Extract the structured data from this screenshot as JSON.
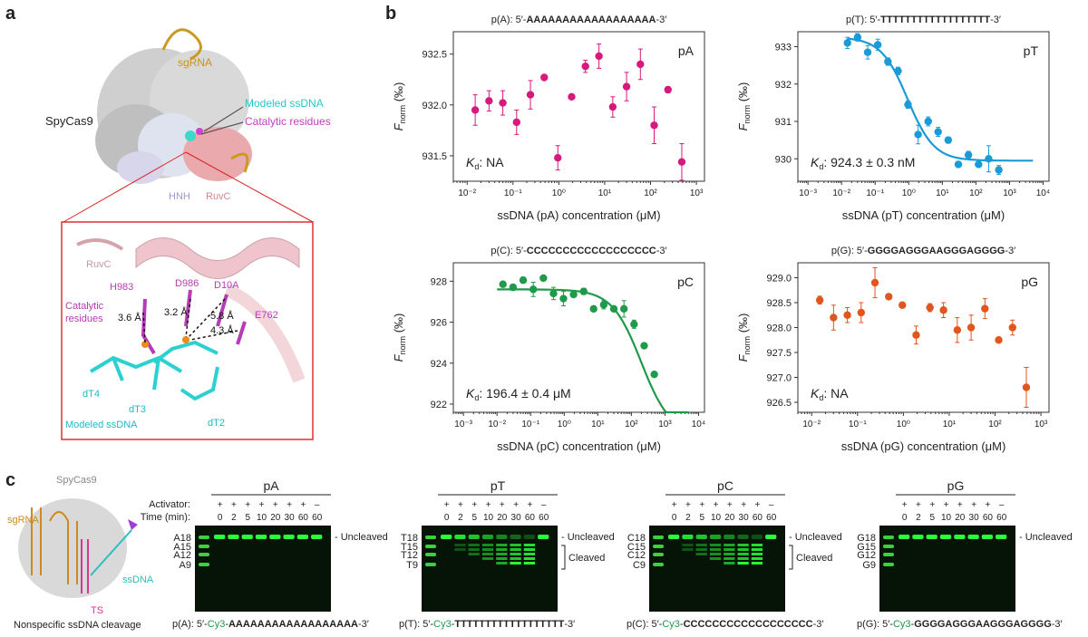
{
  "panels": {
    "a": "a",
    "b": "b",
    "c": "c"
  },
  "structure": {
    "protein": "SpyCas9",
    "sgRNA": "sgRNA",
    "modeled_ssdna": "Modeled ssDNA",
    "catalytic": "Catalytic residues",
    "domains": [
      "HNH",
      "RuvC"
    ],
    "zoom": {
      "ruvc": "RuvC",
      "residues": [
        "H983",
        "D986",
        "D10A",
        "E762"
      ],
      "catalytic_label": [
        "Catalytic",
        "residues"
      ],
      "distances": [
        "3.6 Å",
        "3.2 Å",
        "5.8 Å",
        "4.3 Å"
      ],
      "nucleotides": [
        "dT4",
        "dT3",
        "dT2"
      ],
      "modeled": "Modeled ssDNA"
    }
  },
  "chart_data": [
    {
      "type": "scatter",
      "title_prefix": "p(A):  5′-",
      "title_seq": "AAAAAAAAAAAAAAAAAA",
      "title_suffix": "-3′",
      "panel_label": "pA",
      "kd_label": "NA",
      "xlabel": "ssDNA (pA) concentration (μM)",
      "ylabel": "F",
      "ylabel_sub": "norm",
      "ylabel_unit": " (‰)",
      "xscale": "log",
      "xlim": [
        0.005,
        1500
      ],
      "ylim": [
        931.25,
        932.72
      ],
      "yticks": [
        931.5,
        932.0,
        932.5
      ],
      "ytick_labels": [
        "931.5",
        "932.0",
        "932.5"
      ],
      "xticks": [
        0.01,
        0.1,
        1,
        10,
        100,
        1000
      ],
      "xtick_labels": [
        "10⁻²",
        "10⁻¹",
        "10⁰",
        "10¹",
        "10²",
        "10³"
      ],
      "color": "#d6197c",
      "fit": null,
      "points": [
        {
          "x": 0.015,
          "y": 931.95,
          "err": 0.15
        },
        {
          "x": 0.03,
          "y": 932.04,
          "err": 0.1
        },
        {
          "x": 0.06,
          "y": 932.02,
          "err": 0.12
        },
        {
          "x": 0.12,
          "y": 931.83,
          "err": 0.12
        },
        {
          "x": 0.24,
          "y": 932.1,
          "err": 0.14
        },
        {
          "x": 0.48,
          "y": 932.27,
          "err": 0.0
        },
        {
          "x": 0.95,
          "y": 931.48,
          "err": 0.12
        },
        {
          "x": 1.9,
          "y": 932.08,
          "err": 0.0
        },
        {
          "x": 3.8,
          "y": 932.38,
          "err": 0.06
        },
        {
          "x": 7.5,
          "y": 932.48,
          "err": 0.12
        },
        {
          "x": 15,
          "y": 931.98,
          "err": 0.1
        },
        {
          "x": 30,
          "y": 932.18,
          "err": 0.14
        },
        {
          "x": 60,
          "y": 932.4,
          "err": 0.15
        },
        {
          "x": 120,
          "y": 931.8,
          "err": 0.18
        },
        {
          "x": 240,
          "y": 932.15,
          "err": 0.03
        },
        {
          "x": 480,
          "y": 931.44,
          "err": 0.18
        }
      ]
    },
    {
      "type": "scatter",
      "title_prefix": "p(T):  5′-",
      "title_seq": "TTTTTTTTTTTTTTTTTT",
      "title_suffix": "-3′",
      "panel_label": "pT",
      "kd_label": "924.3 ± 0.3 nM",
      "xlabel": "ssDNA (pT) concentration (μM)",
      "ylabel": "F",
      "ylabel_sub": "norm",
      "ylabel_unit": " (‰)",
      "xscale": "log",
      "xlim": [
        0.0005,
        15000
      ],
      "ylim": [
        929.4,
        933.4
      ],
      "yticks": [
        930,
        931,
        932,
        933
      ],
      "ytick_labels": [
        "930",
        "931",
        "932",
        "933"
      ],
      "xticks": [
        0.001,
        0.01,
        0.1,
        1,
        10,
        100,
        1000,
        10000
      ],
      "xtick_labels": [
        "10⁻³",
        "10⁻²",
        "10⁻¹",
        "10⁰",
        "10¹",
        "10²",
        "10³",
        "10⁴"
      ],
      "color": "#1a9ad6",
      "fit": {
        "top": 933.25,
        "bottom": 929.95,
        "kd": 0.9243,
        "xmin": 0.015,
        "xmax": 5000,
        "hill": 1.1
      },
      "points": [
        {
          "x": 0.015,
          "y": 933.1,
          "err": 0.15
        },
        {
          "x": 0.03,
          "y": 933.25,
          "err": 0.1
        },
        {
          "x": 0.06,
          "y": 932.85,
          "err": 0.18
        },
        {
          "x": 0.12,
          "y": 933.05,
          "err": 0.15
        },
        {
          "x": 0.24,
          "y": 932.6,
          "err": 0.1
        },
        {
          "x": 0.48,
          "y": 932.35,
          "err": 0.1
        },
        {
          "x": 0.95,
          "y": 931.45,
          "err": 0.1
        },
        {
          "x": 1.9,
          "y": 930.65,
          "err": 0.25
        },
        {
          "x": 3.8,
          "y": 931.0,
          "err": 0.12
        },
        {
          "x": 7.5,
          "y": 930.72,
          "err": 0.12
        },
        {
          "x": 15,
          "y": 930.5,
          "err": 0.08
        },
        {
          "x": 30,
          "y": 929.85,
          "err": 0.08
        },
        {
          "x": 60,
          "y": 930.1,
          "err": 0.1
        },
        {
          "x": 120,
          "y": 929.85,
          "err": 0.05
        },
        {
          "x": 240,
          "y": 930.0,
          "err": 0.35
        },
        {
          "x": 480,
          "y": 929.7,
          "err": 0.12
        }
      ]
    },
    {
      "type": "scatter",
      "title_prefix": "p(C):  5′-",
      "title_seq": "CCCCCCCCCCCCCCCCCC",
      "title_suffix": "-3′",
      "panel_label": "pC",
      "kd_label": "196.4 ± 0.4 μM",
      "xlabel": "ssDNA (pC) concentration (μM)",
      "ylabel": "F",
      "ylabel_sub": "norm",
      "ylabel_unit": " (‰)",
      "xscale": "log",
      "xlim": [
        0.0005,
        15000
      ],
      "ylim": [
        921.6,
        928.9
      ],
      "yticks": [
        922,
        924,
        926,
        928
      ],
      "ytick_labels": [
        "922",
        "924",
        "926",
        "928"
      ],
      "xticks": [
        0.001,
        0.01,
        0.1,
        1,
        10,
        100,
        1000,
        10000
      ],
      "xtick_labels": [
        "10⁻³",
        "10⁻²",
        "10⁻¹",
        "10⁰",
        "10¹",
        "10²",
        "10³",
        "10⁴"
      ],
      "color": "#1f9a4a",
      "fit": {
        "top": 927.6,
        "bottom": 920.5,
        "kd": 196.4,
        "xmin": 0.01,
        "xmax": 5000,
        "hill": 1.0
      },
      "points": [
        {
          "x": 0.015,
          "y": 927.85,
          "err": 0.1
        },
        {
          "x": 0.03,
          "y": 927.7,
          "err": 0.15
        },
        {
          "x": 0.06,
          "y": 928.05,
          "err": 0.15
        },
        {
          "x": 0.12,
          "y": 927.6,
          "err": 0.35
        },
        {
          "x": 0.24,
          "y": 928.15,
          "err": 0.1
        },
        {
          "x": 0.48,
          "y": 927.4,
          "err": 0.3
        },
        {
          "x": 0.95,
          "y": 927.15,
          "err": 0.35
        },
        {
          "x": 1.9,
          "y": 927.35,
          "err": 0.1
        },
        {
          "x": 3.8,
          "y": 927.5,
          "err": 0.15
        },
        {
          "x": 7.5,
          "y": 926.65,
          "err": 0.1
        },
        {
          "x": 15,
          "y": 926.85,
          "err": 0.2
        },
        {
          "x": 30,
          "y": 926.65,
          "err": 0.1
        },
        {
          "x": 60,
          "y": 926.65,
          "err": 0.4
        },
        {
          "x": 120,
          "y": 925.9,
          "err": 0.2
        },
        {
          "x": 240,
          "y": 924.85,
          "err": 0.1
        },
        {
          "x": 480,
          "y": 923.45,
          "err": 0.1
        }
      ]
    },
    {
      "type": "scatter",
      "title_prefix": "p(G):  5′-",
      "title_seq": "GGGGAGGGAAGGGAGGGG",
      "title_suffix": "-3′",
      "panel_label": "pG",
      "kd_label": "NA",
      "xlabel": "ssDNA (pG) concentration (μM)",
      "ylabel": "F",
      "ylabel_sub": "norm",
      "ylabel_unit": " (‰)",
      "xscale": "log",
      "xlim": [
        0.005,
        1500
      ],
      "ylim": [
        926.3,
        929.3
      ],
      "yticks": [
        926.5,
        927.0,
        927.5,
        928.0,
        928.5,
        929.0
      ],
      "ytick_labels": [
        "926.5",
        "927.0",
        "927.5",
        "928.0",
        "928.5",
        "929.0"
      ],
      "xticks": [
        0.01,
        0.1,
        1,
        10,
        100,
        1000
      ],
      "xtick_labels": [
        "10⁻²",
        "10⁻¹",
        "10⁰",
        "10¹",
        "10²",
        "10³"
      ],
      "color": "#e0561d",
      "fit": null,
      "points": [
        {
          "x": 0.015,
          "y": 928.55,
          "err": 0.08
        },
        {
          "x": 0.03,
          "y": 928.2,
          "err": 0.25
        },
        {
          "x": 0.06,
          "y": 928.25,
          "err": 0.15
        },
        {
          "x": 0.12,
          "y": 928.3,
          "err": 0.2
        },
        {
          "x": 0.24,
          "y": 928.9,
          "err": 0.3
        },
        {
          "x": 0.48,
          "y": 928.62,
          "err": 0.05
        },
        {
          "x": 0.95,
          "y": 928.45,
          "err": 0.05
        },
        {
          "x": 1.9,
          "y": 927.85,
          "err": 0.18
        },
        {
          "x": 3.8,
          "y": 928.4,
          "err": 0.08
        },
        {
          "x": 7.5,
          "y": 928.35,
          "err": 0.15
        },
        {
          "x": 15,
          "y": 927.95,
          "err": 0.25
        },
        {
          "x": 30,
          "y": 928.0,
          "err": 0.25
        },
        {
          "x": 60,
          "y": 928.38,
          "err": 0.2
        },
        {
          "x": 120,
          "y": 927.75,
          "err": 0.05
        },
        {
          "x": 240,
          "y": 928.0,
          "err": 0.15
        },
        {
          "x": 480,
          "y": 926.8,
          "err": 0.4
        }
      ]
    }
  ],
  "cleavage": {
    "schematic": {
      "protein": "SpyCas9",
      "sgRNA": "sgRNA",
      "ts": "TS",
      "ssdna": "ssDNA",
      "caption": "Nonspecific ssDNA cleavage"
    },
    "activator_label": "Activator:",
    "time_label": "Time (min):",
    "activator": [
      "+",
      "+",
      "+",
      "+",
      "+",
      "+",
      "+",
      "–"
    ],
    "times": [
      "0",
      "2",
      "5",
      "10",
      "20",
      "30",
      "60",
      "60"
    ],
    "uncleaved": "Uncleaved",
    "cleaved": "Cleaved",
    "gels": [
      {
        "title": "pA",
        "ladder": [
          "A18",
          "A15",
          "A12",
          "A9"
        ],
        "cleaved": false,
        "caption_prefix": "p(A):  5′-",
        "caption_cy3": "Cy3",
        "caption_dash": "-",
        "caption_seq": "AAAAAAAAAAAAAAAAAA",
        "caption_suffix": "-3′"
      },
      {
        "title": "pT",
        "ladder": [
          "T18",
          "T15",
          "T12",
          "T9"
        ],
        "cleaved": true,
        "caption_prefix": "p(T):  5′-",
        "caption_cy3": "Cy3",
        "caption_dash": "-",
        "caption_seq": "TTTTTTTTTTTTTTTTTT",
        "caption_suffix": "-3′"
      },
      {
        "title": "pC",
        "ladder": [
          "C18",
          "C15",
          "C12",
          "C9"
        ],
        "cleaved": true,
        "caption_prefix": "p(C):  5′-",
        "caption_cy3": "Cy3",
        "caption_dash": "-",
        "caption_seq": "CCCCCCCCCCCCCCCCCC",
        "caption_suffix": "-3′"
      },
      {
        "title": "pG",
        "ladder": [
          "G18",
          "G15",
          "G12",
          "G9"
        ],
        "cleaved": false,
        "caption_prefix": "p(G):  5′-",
        "caption_cy3": "Cy3",
        "caption_dash": "-",
        "caption_seq": "GGGGAGGGAAGGGAGGGG",
        "caption_suffix": "-3′"
      }
    ]
  }
}
